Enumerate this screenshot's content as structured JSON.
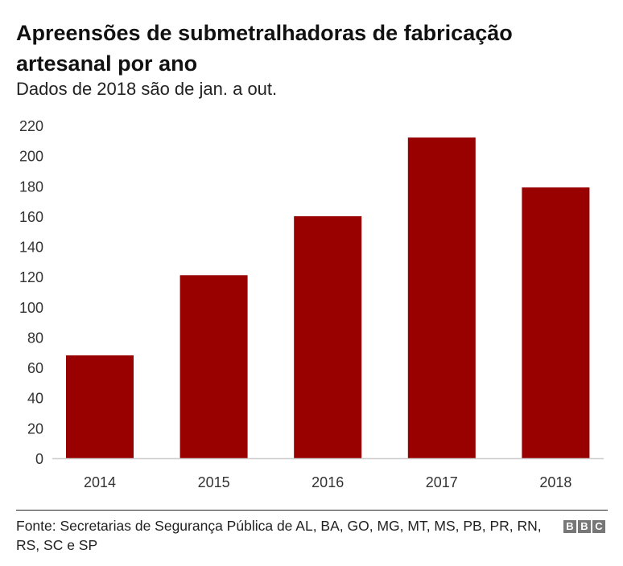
{
  "title": "Apreensões de submetralhadoras de fabricação artesanal por ano",
  "subtitle": "Dados de 2018 são de jan. a out.",
  "source": "Fonte: Secretarias de Segurança Pública de AL, BA, GO, MG, MT, MS, PB, PR, RN, RS, SC e SP",
  "logo": "BBC",
  "colors": {
    "bar": "#990000",
    "baseline": "#cccccc"
  },
  "chart_data": {
    "type": "bar",
    "categories": [
      "2014",
      "2015",
      "2016",
      "2017",
      "2018"
    ],
    "values": [
      68,
      121,
      160,
      212,
      179
    ],
    "ylim": [
      0,
      220
    ],
    "yticks": [
      0,
      20,
      40,
      60,
      80,
      100,
      120,
      140,
      160,
      180,
      200,
      220
    ],
    "grid": false,
    "xlabel": "",
    "ylabel": ""
  }
}
